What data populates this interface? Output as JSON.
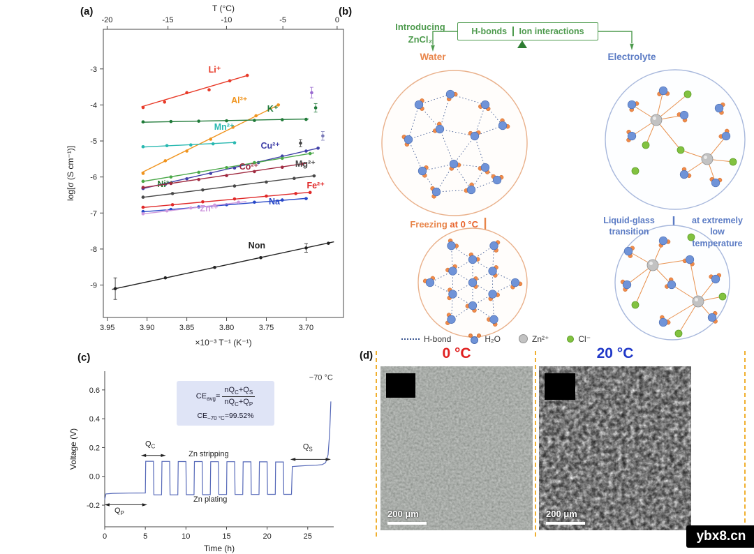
{
  "figure": {
    "panel_a_label": "(a)",
    "panel_b_label": "(b)",
    "panel_c_label": "(c)",
    "panel_d_label": "(d)",
    "watermark": "ybx8.cn"
  },
  "panel_b": {
    "intro_line1": "Introducing",
    "intro_line2": "ZnCl₂",
    "box_left": "H-bonds",
    "box_right": "Ion interactions",
    "water_label": "Water",
    "electrolyte_label": "Electrolyte",
    "freezing_text": "Freezing",
    "freezing_temp": " at 0 °C",
    "transition_line1": "Liquid-glass",
    "transition_line2": "transition",
    "lowtemp_line1": "at extremely",
    "lowtemp_line2": "low temperature",
    "legend": {
      "hbond": "H-bond",
      "water": "H₂O",
      "zinc": "Zn²⁺",
      "chloride": "Cl⁻"
    },
    "colors": {
      "green": "#4d9a4d",
      "dark_green": "#2e7d32",
      "orange": "#e8854a",
      "orange_red": "#e8622a",
      "blue": "#5b7bc4",
      "water_oxygen": "#6f93d8",
      "water_hydrogen": "#ef8a4a",
      "zinc": "#c2c2c2",
      "chloride": "#82c240",
      "hbond_line": "#3a5590",
      "bond_orange": "#e8914e",
      "circle_left": "#e9b08a",
      "circle_right": "#a8b8dc"
    }
  },
  "panel_d": {
    "left_temp": "0 °C",
    "right_temp": "20 °C",
    "scale_label": "200 μm",
    "colors": {
      "left_temp": "#e02020",
      "right_temp": "#2038c8",
      "dashed_line": "#f0b030"
    }
  },
  "chart_data": [
    {
      "id": "a",
      "type": "scatter",
      "xlabel": "×10⁻³ T⁻¹ (K⁻¹)",
      "ylabel": "log[σ (S cm⁻¹)]",
      "top_axis_label": "T (°C)",
      "x_domain": [
        3.955,
        3.653
      ],
      "y_domain": [
        -1.9,
        -9.9
      ],
      "x_ticks": [
        3.95,
        3.9,
        3.85,
        3.8,
        3.75,
        3.7
      ],
      "x_tick_labels": [
        "3.95",
        "3.90",
        "3.85",
        "3.80",
        "3.75",
        "3.70"
      ],
      "top_ticks_celsius": [
        -20,
        -15,
        -10,
        -5,
        0
      ],
      "top_tick_labels": [
        "-20",
        "-15",
        "-10",
        "-5",
        "0"
      ],
      "y_ticks": [
        -3,
        -4,
        -5,
        -6,
        -7,
        -8,
        -9
      ],
      "y_tick_labels": [
        "-3",
        "-4",
        "-5",
        "-6",
        "-7",
        "-8",
        "-9"
      ],
      "series": [
        {
          "name": "Li⁺",
          "color": "#e83a28",
          "line": [
            3.907,
            -4.05,
            3.772,
            -3.17
          ],
          "x": [
            3.905,
            3.878,
            3.85,
            3.822,
            3.796,
            3.774
          ],
          "y": [
            -4.07,
            -3.92,
            -3.66,
            -3.58,
            -3.33,
            -3.18
          ],
          "label_x": 3.815,
          "label_y": -3.1
        },
        {
          "name": "Al³⁺",
          "color": "#f0941e",
          "line": [
            3.907,
            -5.88,
            3.733,
            -3.98
          ],
          "x": [
            3.905,
            3.877,
            3.85,
            3.82,
            3.792,
            3.763,
            3.735
          ],
          "y": [
            -5.9,
            -5.55,
            -5.28,
            -4.95,
            -4.62,
            -4.3,
            -4.0
          ],
          "label_x": 3.784,
          "label_y": -3.95
        },
        {
          "name": "K⁺",
          "color": "#1f7a38",
          "line": [
            3.907,
            -4.48,
            3.697,
            -4.39
          ],
          "x": [
            3.905,
            3.87,
            3.835,
            3.8,
            3.765,
            3.73,
            3.7
          ],
          "y": [
            -4.47,
            -4.46,
            -4.45,
            -4.44,
            -4.43,
            -4.41,
            -4.4
          ],
          "label_x": 3.742,
          "label_y": -4.19
        },
        {
          "name": "Mn²⁺",
          "color": "#28b8b0",
          "line": [
            3.907,
            -5.17,
            3.788,
            -5.04
          ],
          "x": [
            3.905,
            3.875,
            3.845,
            3.817,
            3.79
          ],
          "y": [
            -5.16,
            -5.13,
            -5.11,
            -5.08,
            -5.05
          ],
          "label_x": 3.803,
          "label_y": -4.69
        },
        {
          "name": "Cu²⁺",
          "color": "#4040a8",
          "line": [
            3.907,
            -6.33,
            3.683,
            -5.19
          ],
          "x": [
            3.905,
            3.877,
            3.85,
            3.82,
            3.79,
            3.76,
            3.73,
            3.7,
            3.685
          ],
          "y": [
            -6.32,
            -6.2,
            -6.05,
            -5.9,
            -5.75,
            -5.6,
            -5.42,
            -5.28,
            -5.2
          ],
          "label_x": 3.745,
          "label_y": -5.21
        },
        {
          "name": "Ni²⁺",
          "color": "#4aa848",
          "label_color": "#2a7a30",
          "line": [
            3.907,
            -6.13,
            3.69,
            -5.33
          ],
          "x": [
            3.905,
            3.87,
            3.835,
            3.8,
            3.765,
            3.73,
            3.695
          ],
          "y": [
            -6.12,
            -6.0,
            -5.87,
            -5.74,
            -5.6,
            -5.48,
            -5.35
          ],
          "label_x": 3.877,
          "label_y": -6.28
        },
        {
          "name": "Co²⁺",
          "color": "#a02a40",
          "line": [
            3.907,
            -6.3,
            3.7,
            -5.62
          ],
          "x": [
            3.905,
            3.87,
            3.835,
            3.8,
            3.765,
            3.73,
            3.705
          ],
          "y": [
            -6.29,
            -6.18,
            -6.07,
            -5.96,
            -5.85,
            -5.73,
            -5.64
          ],
          "label_x": 3.772,
          "label_y": -5.79
        },
        {
          "name": "Mg²⁺",
          "color": "#484848",
          "line": [
            3.907,
            -6.57,
            3.688,
            -5.96
          ],
          "x": [
            3.905,
            3.868,
            3.83,
            3.79,
            3.75,
            3.715,
            3.69
          ],
          "y": [
            -6.56,
            -6.46,
            -6.36,
            -6.25,
            -6.14,
            -6.04,
            -5.97
          ],
          "label_x": 3.701,
          "label_y": -5.72
        },
        {
          "name": "Fe²⁺",
          "color": "#e02828",
          "line": [
            3.907,
            -6.85,
            3.693,
            -6.42
          ],
          "x": [
            3.905,
            3.868,
            3.83,
            3.79,
            3.75,
            3.713,
            3.695
          ],
          "y": [
            -6.84,
            -6.77,
            -6.69,
            -6.61,
            -6.53,
            -6.46,
            -6.43
          ],
          "label_x": 3.688,
          "label_y": -6.32
        },
        {
          "name": "Na⁺",
          "color": "#2848c8",
          "line": [
            3.907,
            -6.97,
            3.698,
            -6.59
          ],
          "x": [
            3.905,
            3.87,
            3.835,
            3.8,
            3.765,
            3.73,
            3.7
          ],
          "y": [
            -6.96,
            -6.9,
            -6.83,
            -6.77,
            -6.7,
            -6.64,
            -6.6
          ],
          "label_x": 3.737,
          "label_y": -6.76
        },
        {
          "name": "Zn²⁺",
          "color": "#cf9ade",
          "line": [
            3.907,
            -7.03,
            3.775,
            -6.68
          ],
          "x": [
            3.905,
            3.875,
            3.845,
            3.815,
            3.785
          ],
          "y": [
            -7.02,
            -6.94,
            -6.86,
            -6.78,
            -6.7
          ],
          "label_x": 3.822,
          "label_y": -6.96
        },
        {
          "name": "Non",
          "color": "#222222",
          "line": [
            3.944,
            -9.12,
            3.665,
            -7.8
          ],
          "x": [
            3.94,
            3.877,
            3.815,
            3.757,
            3.7,
            3.672
          ],
          "y": [
            -9.1,
            -8.8,
            -8.51,
            -8.24,
            -7.97,
            -7.84
          ],
          "err": [
            0.3,
            0,
            0,
            0,
            0.12,
            0
          ],
          "label_x": 3.762,
          "label_y": -7.98
        }
      ],
      "extra_points": [
        {
          "x": 3.693,
          "y": -3.66,
          "e": 0.15,
          "color": "#9a6ad0"
        },
        {
          "x": 3.688,
          "y": -4.08,
          "e": 0.12,
          "color": "#1f7a38"
        },
        {
          "x": 3.679,
          "y": -4.86,
          "e": 0.12,
          "color": "#7a7ab8"
        },
        {
          "x": 3.707,
          "y": -5.06,
          "e": 0.1,
          "color": "#444444"
        }
      ]
    },
    {
      "id": "c",
      "type": "line",
      "xlabel": "Time (h)",
      "ylabel": "Voltage (V)",
      "x_domain": [
        0,
        28.2
      ],
      "y_domain": [
        -0.35,
        0.73
      ],
      "x_ticks": [
        0,
        5,
        10,
        15,
        20,
        25
      ],
      "x_tick_labels": [
        "0",
        "5",
        "10",
        "15",
        "20",
        "25"
      ],
      "y_ticks": [
        -0.2,
        0,
        0.2,
        0.4,
        0.6
      ],
      "y_tick_labels": [
        "-0.2",
        "0.0",
        "0.2",
        "0.4",
        "0.6"
      ],
      "line_color": "#5568b8",
      "curve": [
        [
          0,
          -0.16
        ],
        [
          0.15,
          -0.122
        ],
        [
          1,
          -0.118
        ],
        [
          3,
          -0.116
        ],
        [
          5,
          -0.115
        ],
        [
          5.05,
          0.105
        ],
        [
          6,
          0.105
        ],
        [
          6.05,
          -0.128
        ],
        [
          7,
          -0.128
        ],
        [
          7.05,
          0.104
        ],
        [
          8,
          0.104
        ],
        [
          8.05,
          -0.128
        ],
        [
          9,
          -0.128
        ],
        [
          9.05,
          0.103
        ],
        [
          10,
          0.103
        ],
        [
          10.05,
          -0.127
        ],
        [
          11,
          -0.127
        ],
        [
          11.05,
          0.103
        ],
        [
          12,
          0.103
        ],
        [
          12.05,
          -0.127
        ],
        [
          13,
          -0.127
        ],
        [
          13.05,
          0.102
        ],
        [
          14,
          0.102
        ],
        [
          14.05,
          -0.126
        ],
        [
          15,
          -0.126
        ],
        [
          15.05,
          0.102
        ],
        [
          16,
          0.102
        ],
        [
          16.05,
          -0.126
        ],
        [
          17,
          -0.126
        ],
        [
          17.05,
          0.101
        ],
        [
          18,
          0.101
        ],
        [
          18.05,
          -0.126
        ],
        [
          19,
          -0.126
        ],
        [
          19.05,
          0.101
        ],
        [
          20,
          0.101
        ],
        [
          20.05,
          -0.125
        ],
        [
          21,
          -0.125
        ],
        [
          21.05,
          0.1
        ],
        [
          22,
          0.1
        ],
        [
          22.05,
          -0.125
        ],
        [
          23,
          -0.125
        ],
        [
          23.1,
          0.068
        ],
        [
          24,
          0.072
        ],
        [
          25,
          0.075
        ],
        [
          26,
          0.077
        ],
        [
          26.8,
          0.082
        ],
        [
          27.2,
          0.095
        ],
        [
          27.5,
          0.15
        ],
        [
          27.7,
          0.3
        ],
        [
          27.85,
          0.52
        ]
      ],
      "annotations": {
        "temp_label": "−70 °C",
        "zn_stripping": "Zn stripping",
        "zn_plating": "Zn plating",
        "qc_main": "Q",
        "qc_sub": "C",
        "qs_main": "Q",
        "qs_sub": "S",
        "qp_main": "Q",
        "qp_sub": "P",
        "positions": {
          "temp": [
            28.1,
            0.67
          ],
          "stripping": [
            12.8,
            0.14
          ],
          "plating": [
            13.0,
            -0.175
          ],
          "qc_label": [
            5.6,
            0.21
          ],
          "qc_arrow": [
            4.8,
            7.2,
            0.145
          ],
          "qp_label": [
            1.8,
            -0.252
          ],
          "qp_arrow": [
            0.3,
            4.9,
            -0.197
          ],
          "qs_label": [
            25.0,
            0.19
          ],
          "qs_arrow": [
            23.2,
            27.5,
            0.118
          ]
        }
      },
      "equation": {
        "lhs": "CE",
        "lhs_sub": "avg",
        "equals": "=",
        "num_a": "nQ",
        "num_a_sub": "C",
        "num_b": "+Q",
        "num_b_sub": "S",
        "den_a": "nQ",
        "den_a_sub": "C",
        "den_b": "+Q",
        "den_b_sub": "P",
        "res": "CE",
        "res_sub": "−70 °C",
        "res_val": "=99.52%",
        "box_color": "#dfe4f6"
      }
    }
  ]
}
